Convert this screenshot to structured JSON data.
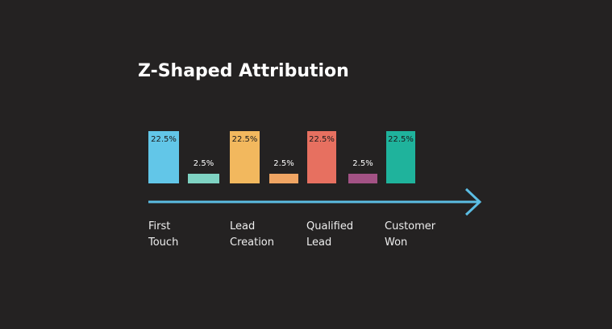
{
  "title": "Z-Shaped Attribution",
  "chart_data": {
    "type": "bar",
    "bars": [
      {
        "value": 22.5,
        "label": "22.5%",
        "color": "#62c6e8"
      },
      {
        "value": 2.5,
        "label": "2.5%",
        "color": "#7fd3c3"
      },
      {
        "value": 22.5,
        "label": "22.5%",
        "color": "#f2b85e"
      },
      {
        "value": 2.5,
        "label": "2.5%",
        "color": "#f0a563"
      },
      {
        "value": 22.5,
        "label": "22.5%",
        "color": "#e77060"
      },
      {
        "value": 2.5,
        "label": "2.5%",
        "color": "#a35285"
      },
      {
        "value": 22.5,
        "label": "22.5%",
        "color": "#1fb39c"
      }
    ],
    "stages": [
      {
        "line1": "First",
        "line2": "Touch"
      },
      {
        "line1": "Lead",
        "line2": "Creation"
      },
      {
        "line1": "Qualified",
        "line2": "Lead"
      },
      {
        "line1": "Customer",
        "line2": "Won"
      }
    ],
    "arrow_color": "#5bbde3"
  }
}
